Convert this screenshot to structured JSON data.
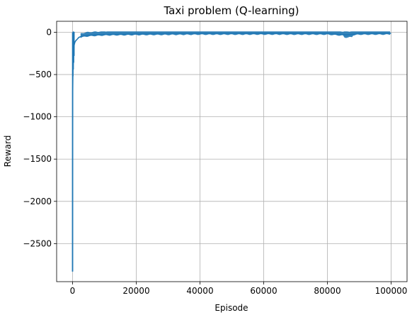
{
  "chart_data": {
    "type": "line",
    "title": "Taxi problem (Q-learning)",
    "xlabel": "Episode",
    "ylabel": "Reward",
    "xlim": [
      -5000,
      105000
    ],
    "ylim": [
      -2950,
      130
    ],
    "x_ticks": [
      0,
      20000,
      40000,
      60000,
      80000,
      100000
    ],
    "y_ticks": [
      0,
      -500,
      -1000,
      -1500,
      -2000,
      -2500
    ],
    "x_tick_labels": [
      "0",
      "20000",
      "40000",
      "60000",
      "80000",
      "100000"
    ],
    "y_tick_labels": [
      "0",
      "−500",
      "−1000",
      "−1500",
      "−2000",
      "−2500"
    ],
    "grid": true,
    "line_color": "#1f77b4",
    "series": [
      {
        "x": [
          0,
          20,
          50,
          100,
          200,
          300,
          500,
          700,
          1000,
          1500,
          2000,
          3000,
          5000,
          10000,
          20000,
          30000,
          40000,
          50000,
          60000,
          70000,
          80000,
          86000,
          90000,
          95000,
          100000
        ],
        "y": [
          -2830,
          -1500,
          -700,
          -450,
          -350,
          -250,
          -150,
          -120,
          -100,
          -80,
          -60,
          -45,
          -35,
          -25,
          -20,
          -18,
          -15,
          -15,
          -14,
          -15,
          -15,
          -30,
          -15,
          -15,
          -13
        ]
      }
    ]
  }
}
